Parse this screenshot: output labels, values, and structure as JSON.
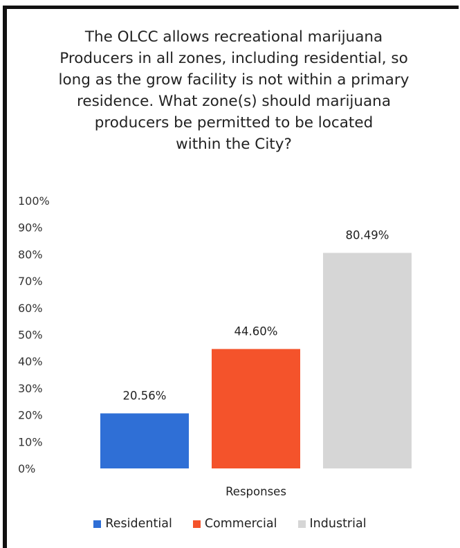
{
  "chart_data": {
    "type": "bar",
    "title": "The OLCC allows recreational marijuana\nProducers in all zones, including residential, so\nlong as the grow facility is not within a primary\nresidence. What zone(s) should marijuana\nproducers be permitted to be located\nwithin the City?",
    "xlabel": "Responses",
    "ylabel": "",
    "ylim": [
      0,
      100
    ],
    "yticks": [
      "0%",
      "10%",
      "20%",
      "30%",
      "40%",
      "50%",
      "60%",
      "70%",
      "80%",
      "90%",
      "100%"
    ],
    "legend_position": "bottom",
    "grid": false,
    "series": [
      {
        "name": "Residential",
        "value": 20.56,
        "label": "20.56%",
        "color": "#2f6fd6"
      },
      {
        "name": "Commercial",
        "value": 44.6,
        "label": "44.60%",
        "color": "#f4532b"
      },
      {
        "name": "Industrial",
        "value": 80.49,
        "label": "80.49%",
        "color": "#d6d6d6"
      }
    ]
  }
}
